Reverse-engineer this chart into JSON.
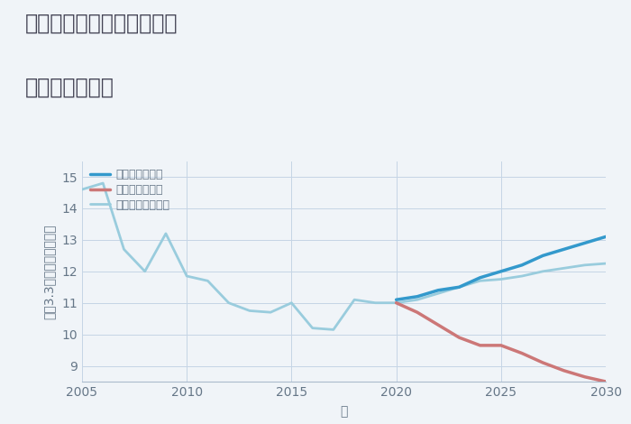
{
  "title_line1": "三重県桑名市長島町出口の",
  "title_line2": "土地の価格推移",
  "xlabel": "年",
  "ylabel": "坪（3.3㎡）単価（万円）",
  "ylim": [
    8.5,
    15.5
  ],
  "xlim": [
    2005,
    2030
  ],
  "yticks": [
    9,
    10,
    11,
    12,
    13,
    14,
    15
  ],
  "xticks": [
    2005,
    2010,
    2015,
    2020,
    2025,
    2030
  ],
  "good_scenario": {
    "x": [
      2020,
      2021,
      2022,
      2023,
      2024,
      2025,
      2026,
      2027,
      2028,
      2029,
      2030
    ],
    "y": [
      11.1,
      11.2,
      11.4,
      11.5,
      11.8,
      12.0,
      12.2,
      12.5,
      12.7,
      12.9,
      13.1
    ],
    "color": "#3399cc",
    "label": "グッドシナリオ",
    "linewidth": 2.5
  },
  "bad_scenario": {
    "x": [
      2020,
      2021,
      2022,
      2023,
      2024,
      2025,
      2026,
      2027,
      2028,
      2029,
      2030
    ],
    "y": [
      11.0,
      10.7,
      10.3,
      9.9,
      9.65,
      9.65,
      9.4,
      9.1,
      8.85,
      8.65,
      8.5
    ],
    "color": "#cc7777",
    "label": "バッドシナリオ",
    "linewidth": 2.5
  },
  "normal_scenario": {
    "x": [
      2005,
      2006,
      2007,
      2008,
      2009,
      2010,
      2011,
      2012,
      2013,
      2014,
      2015,
      2016,
      2017,
      2018,
      2019,
      2020,
      2021,
      2022,
      2023,
      2024,
      2025,
      2026,
      2027,
      2028,
      2029,
      2030
    ],
    "y": [
      14.6,
      14.8,
      12.7,
      12.0,
      13.2,
      11.85,
      11.7,
      11.0,
      10.75,
      10.7,
      11.0,
      10.2,
      10.15,
      11.1,
      11.0,
      11.0,
      11.1,
      11.3,
      11.5,
      11.7,
      11.75,
      11.85,
      12.0,
      12.1,
      12.2,
      12.25
    ],
    "color": "#99ccdd",
    "label": "ノーマルシナリオ",
    "linewidth": 2.0
  },
  "background_color": "#f0f4f8",
  "grid_color": "#c5d5e5",
  "title_color": "#444455",
  "axis_color": "#667788",
  "legend_fontsize": 9,
  "title_fontsize": 17,
  "axis_label_fontsize": 10
}
